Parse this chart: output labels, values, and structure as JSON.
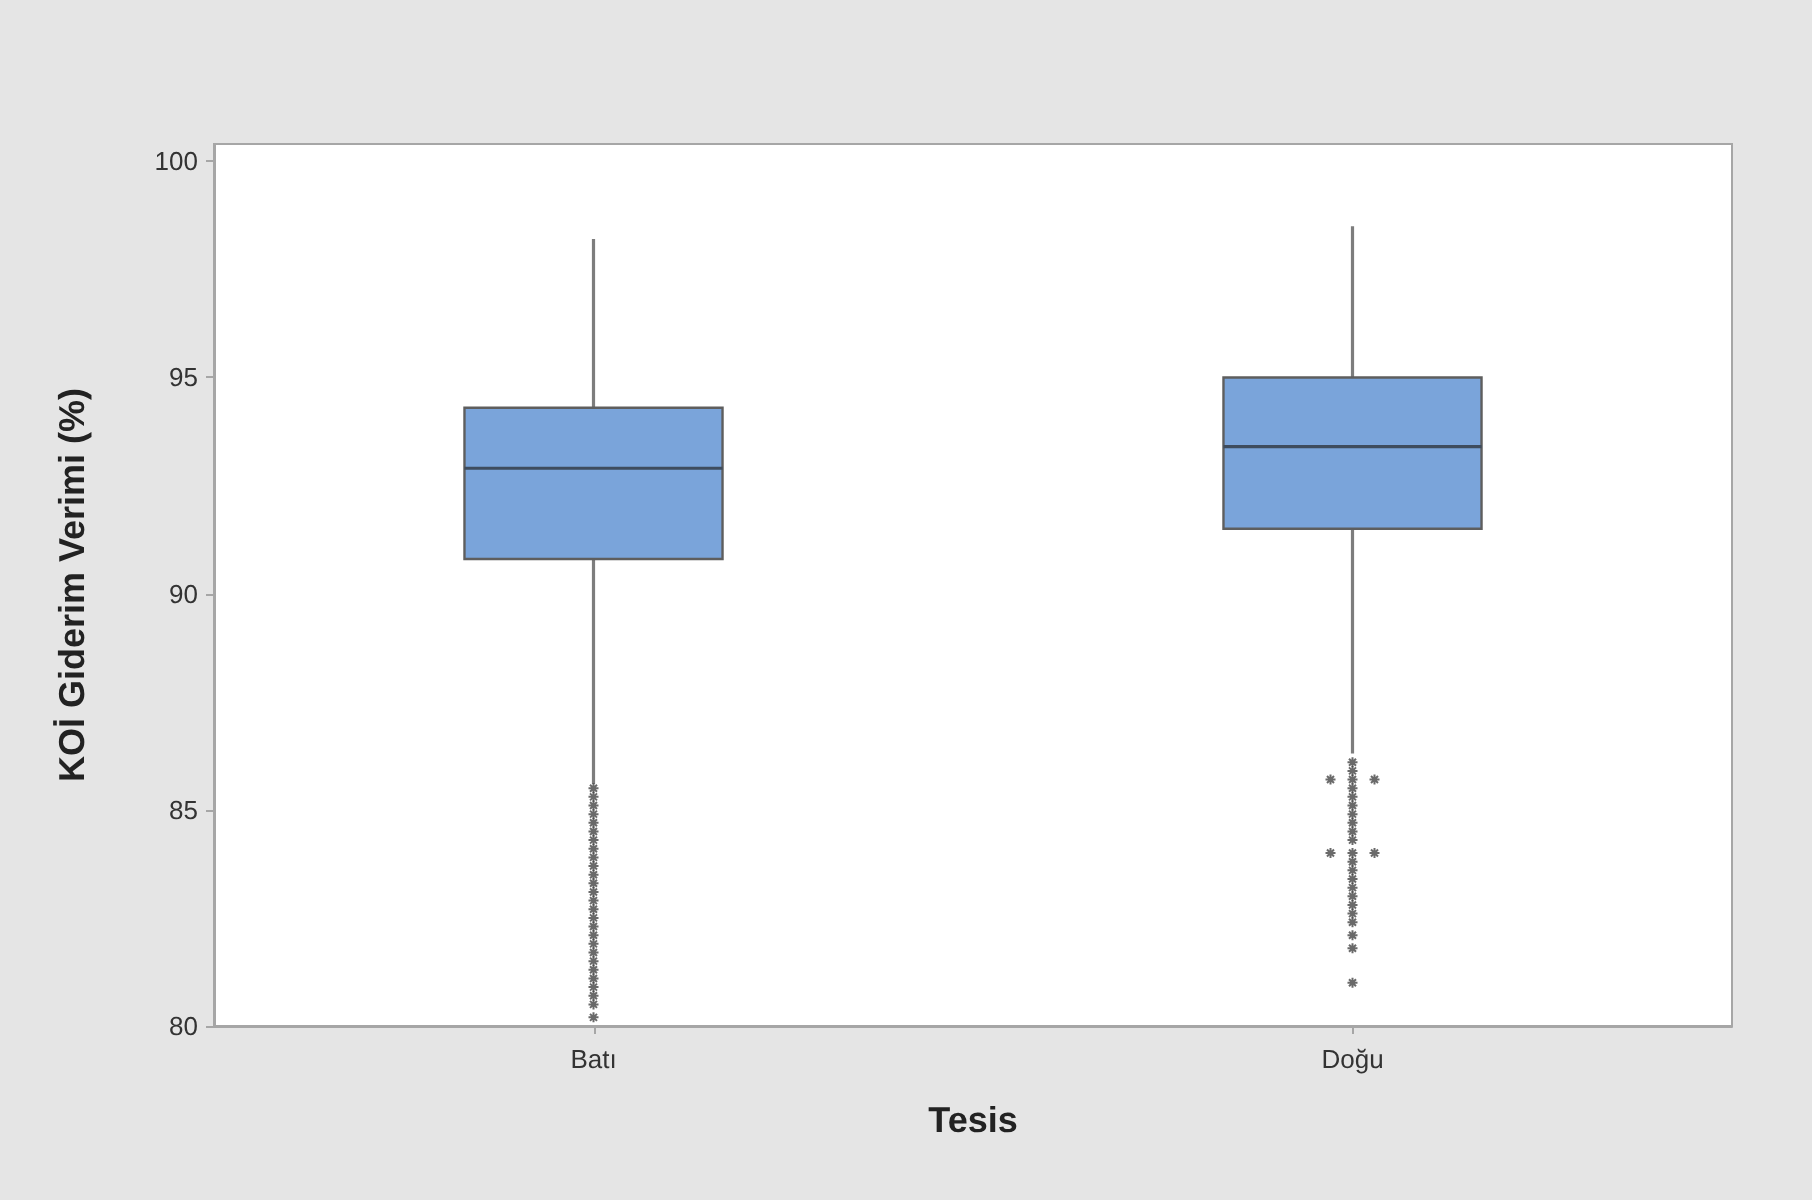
{
  "chart_data": {
    "type": "box",
    "categories": [
      "Batı",
      "Doğu"
    ],
    "xlabel": "Tesis",
    "ylabel": "KOİ Giderim Verimi (%)",
    "series": [
      {
        "color": "#7aa4da",
        "boxes": [
          {
            "low": 85.6,
            "q1": 90.8,
            "median": 92.9,
            "q3": 94.3,
            "high": 98.2,
            "outliers": [
              85.5,
              85.3,
              85.1,
              84.9,
              84.7,
              84.5,
              84.3,
              84.1,
              83.9,
              83.7,
              83.5,
              83.3,
              83.1,
              82.9,
              82.7,
              82.5,
              82.3,
              82.1,
              81.9,
              81.7,
              81.5,
              81.3,
              81.1,
              80.9,
              80.7,
              80.5,
              80.2
            ]
          },
          {
            "low": 86.3,
            "q1": 91.5,
            "median": 93.4,
            "q3": 95.0,
            "high": 98.5,
            "outliers": [
              86.1,
              85.9,
              85.7,
              85.7,
              85.7,
              85.5,
              85.3,
              85.1,
              84.9,
              84.7,
              84.5,
              84.3,
              84.0,
              84.0,
              84.0,
              83.8,
              83.6,
              83.4,
              83.2,
              83.0,
              82.8,
              82.6,
              82.4,
              82.1,
              81.8,
              81.0
            ]
          }
        ]
      }
    ],
    "ylim": [
      80,
      100.4
    ],
    "yticks": [
      80,
      85,
      90,
      95,
      100
    ],
    "grid": false
  }
}
